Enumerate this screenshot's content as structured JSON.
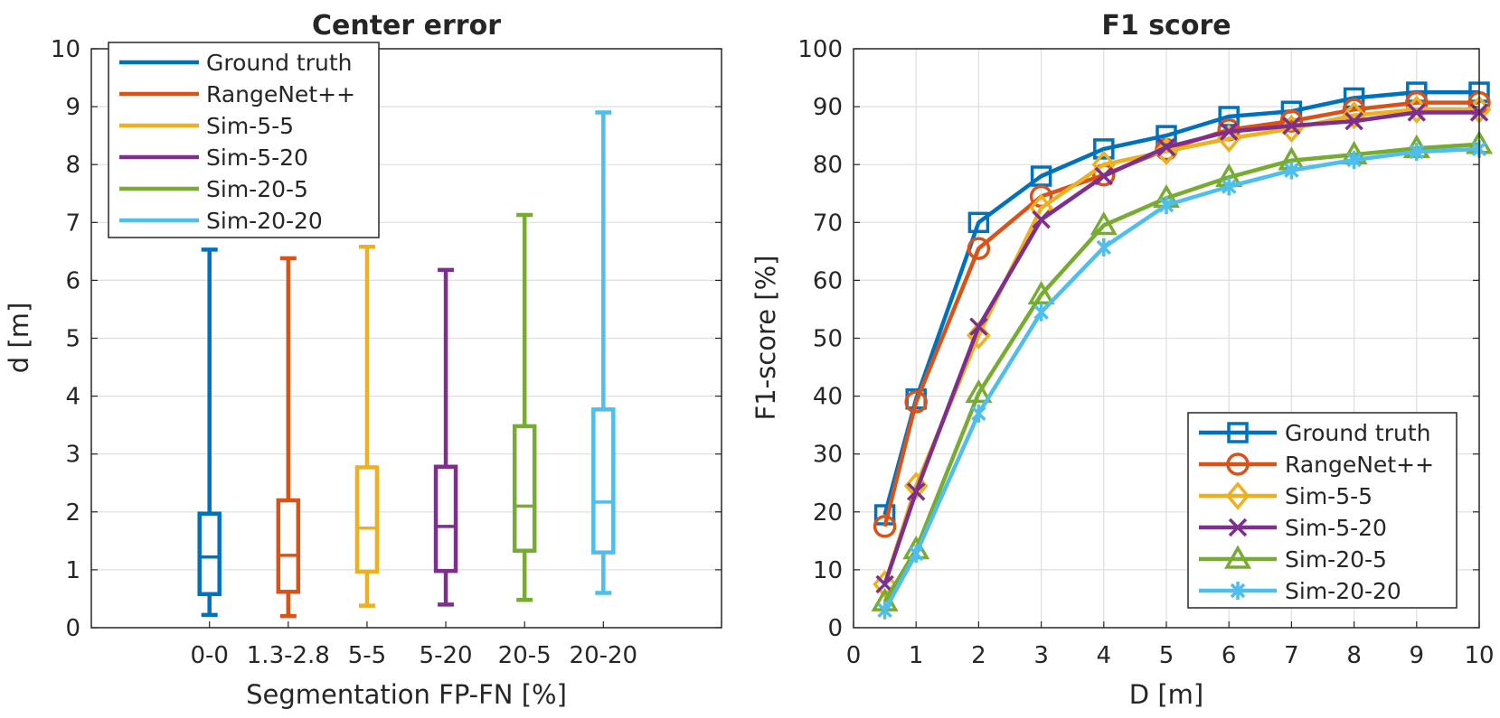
{
  "chart_data": [
    {
      "type": "box",
      "title": "Center error",
      "xlabel": "Segmentation FP-FN [%]",
      "ylabel": "d [m]",
      "ylim": [
        0,
        10
      ],
      "yticks": [
        "0",
        "1",
        "2",
        "3",
        "4",
        "5",
        "6",
        "7",
        "8",
        "9",
        "10"
      ],
      "categories": [
        "0-0",
        "1.3-2.8",
        "5-5",
        "5-20",
        "20-5",
        "20-20"
      ],
      "grid": "horizontal",
      "legend_position": "top-left",
      "series": [
        {
          "name": "Ground truth",
          "color": "#0072BD",
          "min": 0.22,
          "q1": 0.58,
          "median": 1.22,
          "q3": 1.97,
          "max": 6.53
        },
        {
          "name": "RangeNet++",
          "color": "#D95319",
          "min": 0.2,
          "q1": 0.62,
          "median": 1.25,
          "q3": 2.2,
          "max": 6.38
        },
        {
          "name": "Sim-5-5",
          "color": "#EDB120",
          "min": 0.38,
          "q1": 0.97,
          "median": 1.72,
          "q3": 2.77,
          "max": 6.58
        },
        {
          "name": "Sim-5-20",
          "color": "#7E2F8E",
          "min": 0.4,
          "q1": 0.98,
          "median": 1.75,
          "q3": 2.78,
          "max": 6.18
        },
        {
          "name": "Sim-20-5",
          "color": "#77AC30",
          "min": 0.48,
          "q1": 1.33,
          "median": 2.1,
          "q3": 3.48,
          "max": 7.13
        },
        {
          "name": "Sim-20-20",
          "color": "#4DBEEE",
          "min": 0.6,
          "q1": 1.3,
          "median": 2.17,
          "q3": 3.77,
          "max": 8.9
        }
      ]
    },
    {
      "type": "line",
      "title": "F1 score",
      "xlabel": "D [m]",
      "ylabel": "F1-score [%]",
      "xlim": [
        0,
        10
      ],
      "ylim": [
        0,
        100
      ],
      "xticks": [
        "0",
        "1",
        "2",
        "3",
        "4",
        "5",
        "6",
        "7",
        "8",
        "9",
        "10"
      ],
      "yticks": [
        "0",
        "10",
        "20",
        "30",
        "40",
        "50",
        "60",
        "70",
        "80",
        "90",
        "100"
      ],
      "grid": "both",
      "legend_position": "bottom-right",
      "x": [
        0.5,
        1,
        2,
        3,
        4,
        5,
        6,
        7,
        8,
        9,
        10
      ],
      "series": [
        {
          "name": "Ground truth",
          "color": "#0072BD",
          "marker": "square",
          "values": [
            19.5,
            39.5,
            70,
            78,
            82.7,
            85,
            88.3,
            89.2,
            91.5,
            92.5,
            92.5
          ]
        },
        {
          "name": "RangeNet++",
          "color": "#D95319",
          "marker": "circle",
          "values": [
            17.5,
            39,
            65.5,
            74.5,
            78.2,
            82.6,
            86,
            87.5,
            89.5,
            90.7,
            90.7
          ]
        },
        {
          "name": "Sim-5-5",
          "color": "#EDB120",
          "marker": "diamond",
          "values": [
            7.5,
            24.5,
            50.5,
            72.5,
            80,
            82.3,
            84.5,
            86.2,
            88.5,
            89.5,
            89.5
          ]
        },
        {
          "name": "Sim-5-20",
          "color": "#7E2F8E",
          "marker": "x",
          "values": [
            7.5,
            23.5,
            52,
            70.5,
            78,
            83,
            85.7,
            86.7,
            87.5,
            89,
            89
          ]
        },
        {
          "name": "Sim-20-5",
          "color": "#77AC30",
          "marker": "triangle",
          "values": [
            4.5,
            13.5,
            40.5,
            57.5,
            69.5,
            74.2,
            77.8,
            80.7,
            81.7,
            82.8,
            83.5
          ]
        },
        {
          "name": "Sim-20-20",
          "color": "#4DBEEE",
          "marker": "asterisk",
          "values": [
            3,
            12.8,
            37,
            54.5,
            65.7,
            73,
            76.2,
            79,
            80.8,
            82.2,
            82.7
          ]
        }
      ]
    }
  ]
}
